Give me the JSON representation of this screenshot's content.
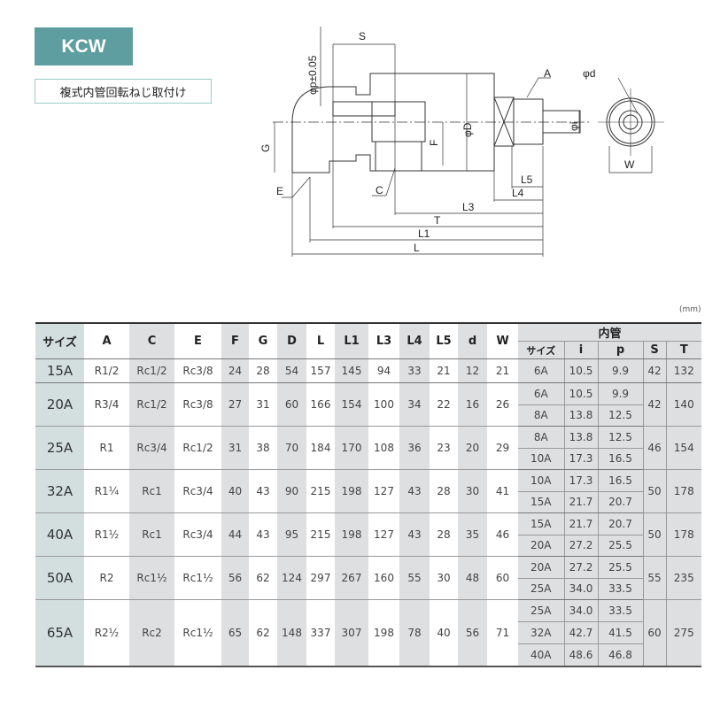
{
  "badge": "KCW",
  "subtitle": "複式内管回転ねじ取付け",
  "drawing": {
    "labels": {
      "phi_p": "φp±0.05",
      "S": "S",
      "A": "A",
      "phi_d": "φd",
      "phi_D": "φD",
      "phi_i": "φi",
      "G": "G",
      "F": "F",
      "E": "E",
      "C": "C",
      "L5": "L5",
      "L4": "L4",
      "L3": "L3",
      "T": "T",
      "L1": "L1",
      "L": "L",
      "W": "W"
    }
  },
  "unit": "(mm)",
  "table": {
    "headers": [
      "サイズ",
      "A",
      "C",
      "E",
      "F",
      "G",
      "D",
      "L",
      "L1",
      "L3",
      "L4",
      "L5",
      "d",
      "W"
    ],
    "inner_header": "内管",
    "inner_headers": [
      "サイズ",
      "i",
      "p",
      "S",
      "T"
    ],
    "rows": [
      {
        "size": "15A",
        "vals": [
          "R1/2",
          "Rc1/2",
          "Rc3/8",
          "24",
          "28",
          "54",
          "157",
          "145",
          "94",
          "33",
          "21",
          "12",
          "21"
        ],
        "inner": [
          [
            "6A",
            "10.5",
            "9.9"
          ]
        ],
        "S": "42",
        "T": "132"
      },
      {
        "size": "20A",
        "vals": [
          "R3/4",
          "Rc1/2",
          "Rc3/8",
          "27",
          "31",
          "60",
          "166",
          "154",
          "100",
          "34",
          "22",
          "16",
          "26"
        ],
        "inner": [
          [
            "6A",
            "10.5",
            "9.9"
          ],
          [
            "8A",
            "13.8",
            "12.5"
          ]
        ],
        "S": "42",
        "T": "140"
      },
      {
        "size": "25A",
        "vals": [
          "R1",
          "Rc3/4",
          "Rc1/2",
          "31",
          "38",
          "70",
          "184",
          "170",
          "108",
          "36",
          "23",
          "20",
          "29"
        ],
        "inner": [
          [
            "8A",
            "13.8",
            "12.5"
          ],
          [
            "10A",
            "17.3",
            "16.5"
          ]
        ],
        "S": "46",
        "T": "154"
      },
      {
        "size": "32A",
        "vals": [
          "R1¼",
          "Rc1",
          "Rc3/4",
          "40",
          "43",
          "90",
          "215",
          "198",
          "127",
          "43",
          "28",
          "30",
          "41"
        ],
        "inner": [
          [
            "10A",
            "17.3",
            "16.5"
          ],
          [
            "15A",
            "21.7",
            "20.7"
          ]
        ],
        "S": "50",
        "T": "178"
      },
      {
        "size": "40A",
        "vals": [
          "R1½",
          "Rc1",
          "Rc3/4",
          "44",
          "43",
          "95",
          "215",
          "198",
          "127",
          "43",
          "28",
          "35",
          "46"
        ],
        "inner": [
          [
            "15A",
            "21.7",
            "20.7"
          ],
          [
            "20A",
            "27.2",
            "25.5"
          ]
        ],
        "S": "50",
        "T": "178"
      },
      {
        "size": "50A",
        "vals": [
          "R2",
          "Rc1½",
          "Rc1½",
          "56",
          "62",
          "124",
          "297",
          "267",
          "160",
          "55",
          "30",
          "48",
          "60"
        ],
        "inner": [
          [
            "20A",
            "27.2",
            "25.5"
          ],
          [
            "25A",
            "34.0",
            "33.5"
          ]
        ],
        "S": "55",
        "T": "235"
      },
      {
        "size": "65A",
        "vals": [
          "R2½",
          "Rc2",
          "Rc1½",
          "65",
          "62",
          "148",
          "337",
          "307",
          "198",
          "78",
          "40",
          "56",
          "71"
        ],
        "inner": [
          [
            "25A",
            "34.0",
            "33.5"
          ],
          [
            "32A",
            "42.7",
            "41.5"
          ],
          [
            "40A",
            "48.6",
            "46.8"
          ]
        ],
        "S": "60",
        "T": "275"
      }
    ]
  }
}
